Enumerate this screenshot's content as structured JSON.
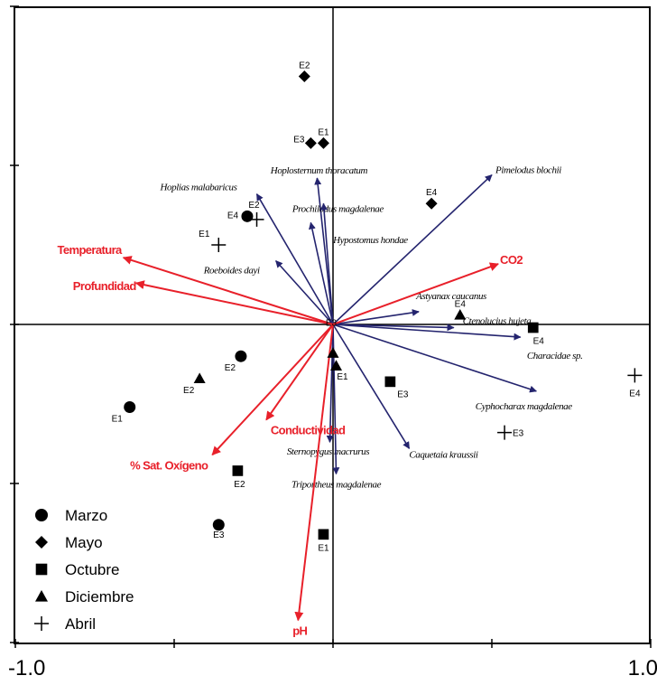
{
  "chart_data": {
    "type": "scatter",
    "subtype": "biplot",
    "title": "",
    "xlabel": "",
    "ylabel": "",
    "xlim": [
      -1.0,
      1.0
    ],
    "ylim": [
      -1.0,
      1.0
    ],
    "x_tick_labels": [
      {
        "value": -1.0,
        "label": "-1.0"
      },
      {
        "value": 1.0,
        "label": "1.0"
      }
    ],
    "x_ticks": [
      -1.0,
      -0.5,
      0.0,
      0.5,
      1.0
    ],
    "y_ticks": [
      -1.0,
      -0.5,
      0.0,
      0.5,
      1.0
    ],
    "grid": false,
    "legend_position": "bottom-left",
    "colors": {
      "environmental": "#e8202a",
      "species": "#24246e",
      "sites": "#000000"
    },
    "environmental_vectors": [
      {
        "name": "Temperatura",
        "x": -0.66,
        "y": 0.21
      },
      {
        "name": "Profundidad",
        "x": -0.62,
        "y": 0.13
      },
      {
        "name": "CO2",
        "x": 0.52,
        "y": 0.19
      },
      {
        "name": "Conductividad",
        "x": -0.21,
        "y": -0.3
      },
      {
        "name": "% Sat. Oxígeno",
        "x": -0.38,
        "y": -0.41
      },
      {
        "name": "pH",
        "x": -0.11,
        "y": -0.93
      }
    ],
    "species_vectors": [
      {
        "name": "Pimelodus blochii",
        "x": 0.5,
        "y": 0.47
      },
      {
        "name": "Hoplias malabaricus",
        "x": -0.24,
        "y": 0.41
      },
      {
        "name": "Hoplosternum thoracatum",
        "x": -0.05,
        "y": 0.46
      },
      {
        "name": "Prochilodus magdalenae",
        "x": -0.07,
        "y": 0.32
      },
      {
        "name": "Hypostomus hondae",
        "x": -0.03,
        "y": 0.38
      },
      {
        "name": "Roeboides dayi",
        "x": -0.18,
        "y": 0.2
      },
      {
        "name": "Astyanax caucanus",
        "x": 0.27,
        "y": 0.04
      },
      {
        "name": "Ctenolucius hujeta",
        "x": 0.38,
        "y": -0.01
      },
      {
        "name": "Characidae sp.",
        "x": 0.59,
        "y": -0.04
      },
      {
        "name": "Cyphocharax magdalenae",
        "x": 0.64,
        "y": -0.21
      },
      {
        "name": "Caquetaia kraussii",
        "x": 0.24,
        "y": -0.39
      },
      {
        "name": "Sternopygus macrurus",
        "x": -0.01,
        "y": -0.37
      },
      {
        "name": "Triportheus magdalenae",
        "x": 0.01,
        "y": -0.47
      }
    ],
    "series": [
      {
        "name": "Marzo",
        "marker": "circle",
        "points": [
          {
            "label": "E1",
            "x": -0.64,
            "y": -0.26
          },
          {
            "label": "E2",
            "x": -0.29,
            "y": -0.1
          },
          {
            "label": "E3",
            "x": -0.36,
            "y": -0.63
          },
          {
            "label": "E4",
            "x": -0.27,
            "y": 0.34
          }
        ]
      },
      {
        "name": "Mayo",
        "marker": "diamond",
        "points": [
          {
            "label": "E1",
            "x": -0.03,
            "y": 0.57
          },
          {
            "label": "E2",
            "x": -0.09,
            "y": 0.78
          },
          {
            "label": "E3",
            "x": -0.07,
            "y": 0.57
          },
          {
            "label": "E4",
            "x": 0.31,
            "y": 0.38
          }
        ]
      },
      {
        "name": "Octubre",
        "marker": "square",
        "points": [
          {
            "label": "E1",
            "x": -0.03,
            "y": -0.66
          },
          {
            "label": "E2",
            "x": -0.3,
            "y": -0.46
          },
          {
            "label": "E3",
            "x": 0.18,
            "y": -0.18
          },
          {
            "label": "E4",
            "x": 0.63,
            "y": -0.01
          }
        ]
      },
      {
        "name": "Diciembre",
        "marker": "triangle",
        "points": [
          {
            "label": "E1",
            "x": 0.01,
            "y": -0.13
          },
          {
            "label": "E2",
            "x": -0.42,
            "y": -0.17
          },
          {
            "label": "E3",
            "x": 0.0,
            "y": -0.09
          },
          {
            "label": "E4",
            "x": 0.4,
            "y": 0.03
          }
        ]
      },
      {
        "name": "Abril",
        "marker": "cross",
        "points": [
          {
            "label": "E1",
            "x": -0.36,
            "y": 0.25
          },
          {
            "label": "E2",
            "x": -0.24,
            "y": 0.33
          },
          {
            "label": "E3",
            "x": 0.54,
            "y": -0.34
          },
          {
            "label": "E4",
            "x": 0.95,
            "y": -0.16
          }
        ]
      }
    ],
    "legend": [
      "Marzo",
      "Mayo",
      "Octubre",
      "Diciembre",
      "Abril"
    ]
  }
}
